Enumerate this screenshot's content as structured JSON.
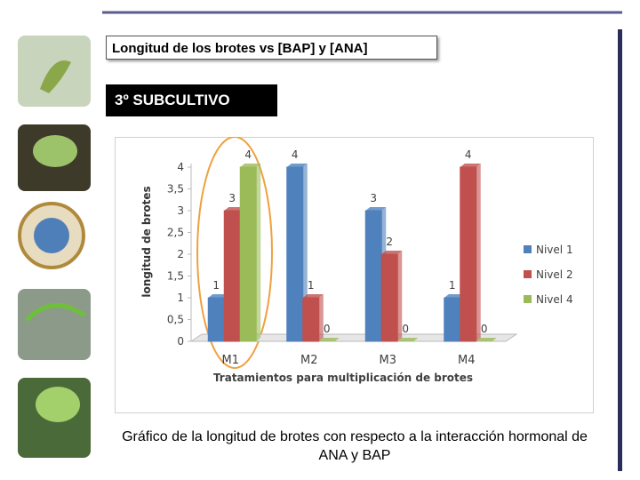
{
  "slide_title": "Longitud de los brotes vs [BAP] y [ANA]",
  "subtitle": "3º SUBCULTIVO",
  "caption": "Gráfico de la longitud de brotes con respecto a la interacción hormonal de ANA y BAP",
  "chart_data": {
    "type": "bar",
    "y_label": "longitud de brotes",
    "x_label": "Tratamientos para multiplicación  de brotes",
    "categories": [
      "M1",
      "M2",
      "M3",
      "M4"
    ],
    "series": [
      {
        "name": "Nivel 1",
        "color": "#4f81bd",
        "values": [
          1,
          4,
          3,
          1
        ]
      },
      {
        "name": "Nivel 2",
        "color": "#c0504d",
        "values": [
          3,
          1,
          2,
          4
        ]
      },
      {
        "name": "Nivel 4",
        "color": "#9bbb59",
        "values": [
          4,
          0,
          0,
          0
        ]
      }
    ],
    "ylim": [
      0,
      4
    ],
    "yticks": [
      0,
      {
        "value": 0.5,
        "label": "0,5"
      },
      1,
      {
        "value": 1.5,
        "label": "1,5"
      },
      2,
      {
        "value": 2.5,
        "label": "2,5"
      },
      3,
      {
        "value": 3.5,
        "label": "3,5"
      },
      4
    ],
    "legend": "right"
  }
}
